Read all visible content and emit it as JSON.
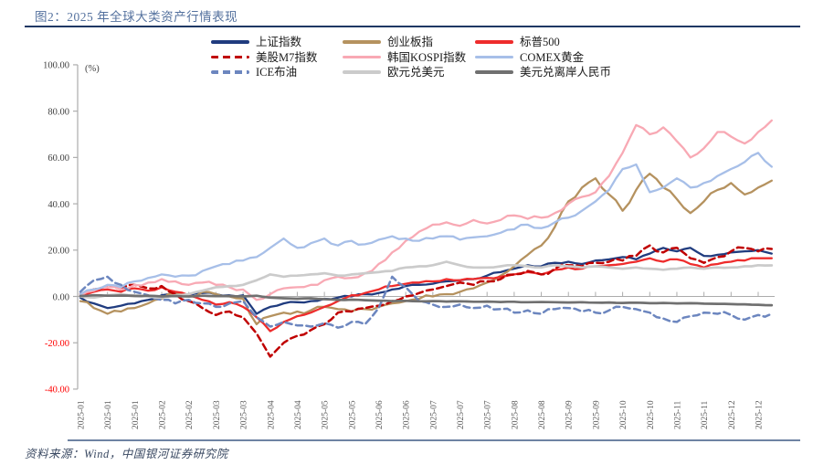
{
  "title": "图2：2025 年全球大类资产行情表现",
  "source": "资料来源：Wind，中国银河证券研究院",
  "colors": {
    "title": "#54719E",
    "title_rule": "#1F3864",
    "source_rule": "#6E83A3",
    "source_text": "#3B4A63",
    "axis_line": "#ACACAC",
    "axis_text": "#404040",
    "negative_axis_text": "#FF0000",
    "x_axis_text": "#595959",
    "legend_text": "#1A1A1A"
  },
  "chart_data": {
    "type": "line",
    "title": "2025 年全球大类资产行情表现",
    "unit_label": "(%)",
    "ylabel": "(%)",
    "xlabel": "",
    "ylim": [
      -40,
      100
    ],
    "grid": false,
    "legend_position": "top",
    "yticks": [
      100,
      80,
      60,
      40,
      20,
      0,
      -20,
      -40
    ],
    "ytick_labels": [
      "100.00",
      "80.00",
      "60.00",
      "40.00",
      "20.00",
      "0.00",
      "-20.00",
      "-40.00"
    ],
    "x_labels": [
      "2025-01",
      "2025-01",
      "2025-01",
      "2025-02",
      "2025-02",
      "2025-03",
      "2025-03",
      "2025-04",
      "2025-04",
      "2025-05",
      "2025-05",
      "2025-06",
      "2025-06",
      "2025-07",
      "2025-07",
      "2025-07",
      "2025-08",
      "2025-08",
      "2025-09",
      "2025-09",
      "2025-10",
      "2025-10",
      "2025-11",
      "2025-11",
      "2025-12",
      "2025-12"
    ],
    "x_points_per_label": 2,
    "series": [
      {
        "slug": "shanghai",
        "name": "上证指数",
        "color": "#203C7F",
        "dash": false,
        "jitter": 0.5,
        "values": [
          -0.5,
          -3,
          -5,
          -4,
          -3,
          -1.5,
          0.5,
          1.5,
          0.5,
          1.5,
          1,
          0.5,
          0.5,
          -7.5,
          -4.5,
          -3,
          -2.5,
          -2,
          -1,
          -0.5,
          0,
          1,
          1.5,
          3,
          4.5,
          5,
          5.5,
          6.5,
          7,
          7.5,
          9,
          10.5,
          12,
          13.5,
          13,
          14.5,
          15,
          14,
          15.5,
          16,
          17,
          16,
          18.5,
          21,
          19.5,
          21,
          17.5,
          18,
          19,
          19.5,
          20,
          18.5
        ]
      },
      {
        "slug": "chinext",
        "name": "创业板指",
        "color": "#B5925F",
        "dash": false,
        "jitter": 1.1,
        "values": [
          -2,
          -5,
          -7.5,
          -6.5,
          -5,
          -3,
          -1,
          1,
          0,
          2,
          1,
          0,
          -1,
          -12,
          -8.5,
          -7,
          -6.5,
          -6,
          -4.5,
          -5.5,
          -6.5,
          -5.5,
          -4.5,
          -3,
          -2,
          -1,
          0,
          1,
          2,
          3.5,
          6,
          9,
          13,
          18,
          22,
          30,
          41,
          47,
          51,
          44,
          37,
          46,
          53,
          47,
          42,
          36,
          41,
          46,
          49,
          44,
          47,
          50
        ]
      },
      {
        "slug": "sp500",
        "name": "标普500",
        "color": "#EE2C2C",
        "dash": false,
        "jitter": 0.55,
        "values": [
          0.5,
          2,
          3,
          2,
          3.5,
          2.5,
          4,
          2,
          0.5,
          -1.5,
          -3.5,
          -2.5,
          -4.5,
          -9,
          -15,
          -11,
          -8.5,
          -7,
          -4.5,
          -2,
          0.5,
          1.5,
          3,
          4.5,
          5.5,
          6,
          6.5,
          7.5,
          7,
          7.5,
          8,
          8.5,
          9.5,
          10.5,
          9.5,
          11.5,
          12.5,
          12,
          13,
          13.5,
          14,
          15,
          16.5,
          15,
          16,
          14,
          12.5,
          14,
          15,
          15.5,
          16.5,
          16.5
        ]
      },
      {
        "slug": "m7",
        "name": "美股M7指数",
        "color": "#C00000",
        "dash": true,
        "jitter": 1.0,
        "values": [
          1,
          3,
          4.5,
          3,
          5,
          3.5,
          4.5,
          1,
          -2,
          -5,
          -8,
          -6.5,
          -9,
          -16,
          -26,
          -20,
          -17,
          -14.5,
          -12,
          -7,
          -6.5,
          -5,
          -4,
          -2,
          0,
          1.5,
          3,
          4.5,
          6,
          5,
          6.5,
          7.5,
          9.5,
          11,
          9.5,
          12,
          13.5,
          13,
          14.5,
          15,
          15.5,
          17.5,
          22,
          19,
          21,
          16.5,
          14.5,
          17,
          19.5,
          21,
          19.5,
          20.5
        ]
      },
      {
        "slug": "kospi",
        "name": "韩国KOSPI指数",
        "color": "#F8A9B4",
        "dash": false,
        "jitter": 1.0,
        "values": [
          0.5,
          2.5,
          4,
          3,
          5,
          6,
          7.5,
          6.5,
          5,
          6,
          5,
          4,
          3,
          -1.5,
          1,
          3.5,
          4,
          5,
          7,
          8.5,
          8,
          10,
          14,
          19,
          24,
          28,
          31,
          32,
          30.5,
          33,
          31.5,
          33,
          35,
          33.5,
          34,
          36,
          40,
          43,
          45,
          52,
          62,
          74,
          70,
          73,
          67,
          60,
          64,
          71,
          69,
          66,
          71,
          76
        ]
      },
      {
        "slug": "gold",
        "name": "COMEX黄金",
        "color": "#A7BFE8",
        "dash": false,
        "jitter": 0.9,
        "values": [
          1,
          3,
          5,
          4,
          6.5,
          8,
          9.5,
          8.5,
          9,
          11,
          13,
          14,
          15.5,
          17,
          21,
          25,
          21,
          23,
          25,
          22,
          24,
          22.5,
          24.5,
          26,
          25,
          24,
          25,
          26,
          24.5,
          25.5,
          26,
          27.5,
          29,
          31,
          29.5,
          32,
          34,
          37,
          41,
          46,
          55,
          57,
          45,
          47,
          51,
          47,
          49,
          52,
          55,
          58,
          62,
          56
        ]
      },
      {
        "slug": "brent",
        "name": "ICE布油",
        "color": "#6C86BF",
        "dash": true,
        "jitter": 1.0,
        "values": [
          2,
          7,
          8.5,
          5,
          2,
          0.5,
          -1.5,
          -3,
          -1.5,
          -3,
          -4.5,
          -3,
          -2,
          -9,
          -13,
          -11,
          -12.5,
          -13,
          -11.5,
          -13.5,
          -11,
          -12,
          -5,
          8.5,
          4,
          -2,
          -3.5,
          -4.5,
          -3.5,
          -5,
          -4,
          -5.5,
          -7,
          -6,
          -7.5,
          -5.5,
          -5,
          -6.5,
          -7,
          -6,
          -4.5,
          -5.5,
          -7,
          -9.5,
          -11,
          -8.5,
          -7,
          -7.5,
          -8,
          -10,
          -8,
          -7.5
        ]
      },
      {
        "slug": "eurusd",
        "name": "欧元兑美元",
        "color": "#CBCBCB",
        "dash": false,
        "jitter": 0.25,
        "values": [
          0,
          -0.5,
          0.5,
          1,
          0.5,
          0,
          -0.5,
          0.5,
          1,
          2.5,
          4,
          4.5,
          5,
          7,
          9.5,
          8.5,
          9,
          9.5,
          10,
          9,
          9.5,
          10,
          10.5,
          11,
          12.5,
          13,
          13.5,
          15,
          13.5,
          12.5,
          12.5,
          13,
          13.5,
          13,
          12.5,
          13.5,
          13,
          12.5,
          13,
          12.5,
          12,
          12.5,
          12,
          11.5,
          12,
          12.5,
          12,
          12.5,
          12.5,
          13,
          13.5,
          13.4
        ]
      },
      {
        "slug": "usdcnh",
        "name": "美元兑离岸人民币",
        "color": "#707070",
        "dash": false,
        "jitter": 0.08,
        "values": [
          0.2,
          0.5,
          0.3,
          0.4,
          0.2,
          0.3,
          0,
          0.2,
          0,
          0.3,
          0.1,
          0.2,
          0,
          0.3,
          -0.5,
          -0.8,
          -1,
          -0.8,
          -1.2,
          -1.5,
          -1.4,
          -1.6,
          -1.8,
          -2,
          -1.9,
          -2.1,
          -2,
          -2.2,
          -2.1,
          -2.3,
          -2.2,
          -2.4,
          -2.3,
          -2.5,
          -2.4,
          -2.5,
          -2.6,
          -2.5,
          -2.7,
          -2.6,
          -2.8,
          -2.7,
          -2.9,
          -2.8,
          -3,
          -2.9,
          -3.1,
          -3.2,
          -3.3,
          -3.4,
          -3.6,
          -3.8
        ]
      }
    ]
  }
}
